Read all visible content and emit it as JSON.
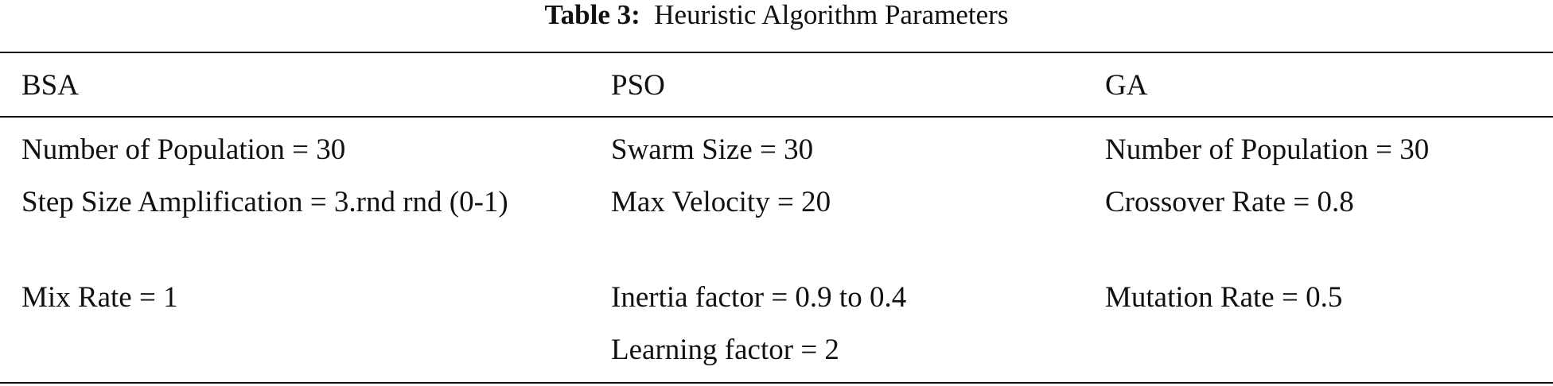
{
  "caption": {
    "label": "Table 3:",
    "title": "Heuristic Algorithm Parameters"
  },
  "table": {
    "header": [
      "BSA",
      "PSO",
      "GA"
    ],
    "rows": [
      [
        "Number of Population = 30",
        "Swarm Size = 30",
        "Number of Population = 30"
      ],
      [
        "Step Size Amplification = 3.rnd rnd (0-1)",
        "Max Velocity = 20",
        "Crossover Rate = 0.8"
      ],
      [
        "Mix Rate = 1",
        "Inertia factor = 0.9 to 0.4",
        "Mutation Rate = 0.5"
      ],
      [
        null,
        "Learning factor = 2",
        null
      ]
    ]
  }
}
